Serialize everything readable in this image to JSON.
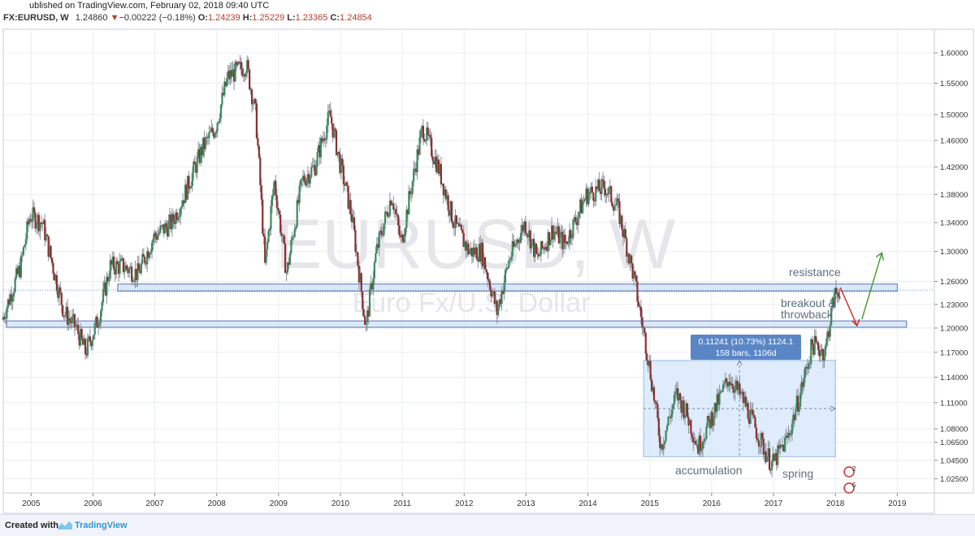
{
  "header": {
    "published": "ublished on TradingView.com, February 02, 2018 09:40 UTC",
    "symbol": "FX:EURUSD, W",
    "last": "1.24860",
    "change": "−0.00222 (−0.18%)",
    "open_label": "O:",
    "open": "1.24239",
    "high_label": "H:",
    "high": "1.25229",
    "low_label": "L:",
    "low": "1.23365",
    "close_label": "C:",
    "close": "1.24854",
    "down_arrow": "▼"
  },
  "watermark": {
    "line1": "EURUSD, W",
    "line2": "Euro Fx/U.S. Dollar"
  },
  "footer": {
    "created": "Created with",
    "brand": "TradingView"
  },
  "colors": {
    "up": "#3c8a5e",
    "down": "#8b2e2e",
    "zone_fill": "#cfe0f6",
    "zone_stroke": "#5a78b8",
    "measure_fill": "#dbeafb",
    "arrow_up": "#3d9a2e",
    "arrow_down": "#d42424",
    "grid": "#e9edf3"
  },
  "chart_data": {
    "type": "candlestick",
    "symbol": "FX:EURUSD",
    "interval": "W",
    "x_ticks": [
      "2005",
      "2006",
      "2007",
      "2008",
      "2009",
      "2010",
      "2011",
      "2012",
      "2013",
      "2014",
      "2015",
      "2016",
      "2017",
      "2018",
      "2019"
    ],
    "y_ticks": [
      "1.60000",
      "1.55000",
      "1.50000",
      "1.46000",
      "1.42000",
      "1.38000",
      "1.34000",
      "1.30000",
      "1.26000",
      "1.23000",
      "1.20000",
      "1.17000",
      "1.14000",
      "1.11000",
      "1.08000",
      "1.06500",
      "1.04500",
      "1.02500"
    ],
    "y_scale": "log",
    "ylim": [
      1.01,
      1.64
    ],
    "xlim": [
      2004.55,
      2019.6
    ],
    "grid": true,
    "price_path": [
      [
        2004.55,
        1.21
      ],
      [
        2004.85,
        1.28
      ],
      [
        2005.0,
        1.35
      ],
      [
        2005.2,
        1.34
      ],
      [
        2005.4,
        1.27
      ],
      [
        2005.55,
        1.22
      ],
      [
        2005.75,
        1.2
      ],
      [
        2005.9,
        1.17
      ],
      [
        2006.1,
        1.21
      ],
      [
        2006.3,
        1.28
      ],
      [
        2006.5,
        1.28
      ],
      [
        2006.75,
        1.27
      ],
      [
        2007.0,
        1.32
      ],
      [
        2007.3,
        1.34
      ],
      [
        2007.5,
        1.38
      ],
      [
        2007.8,
        1.45
      ],
      [
        2008.0,
        1.48
      ],
      [
        2008.2,
        1.56
      ],
      [
        2008.5,
        1.58
      ],
      [
        2008.65,
        1.5
      ],
      [
        2008.8,
        1.28
      ],
      [
        2008.95,
        1.4
      ],
      [
        2009.15,
        1.27
      ],
      [
        2009.4,
        1.4
      ],
      [
        2009.6,
        1.42
      ],
      [
        2009.85,
        1.5
      ],
      [
        2010.0,
        1.43
      ],
      [
        2010.2,
        1.35
      ],
      [
        2010.43,
        1.2
      ],
      [
        2010.6,
        1.3
      ],
      [
        2010.85,
        1.38
      ],
      [
        2011.0,
        1.31
      ],
      [
        2011.35,
        1.48
      ],
      [
        2011.6,
        1.42
      ],
      [
        2011.85,
        1.34
      ],
      [
        2012.1,
        1.3
      ],
      [
        2012.3,
        1.3
      ],
      [
        2012.55,
        1.22
      ],
      [
        2012.75,
        1.29
      ],
      [
        2013.0,
        1.34
      ],
      [
        2013.2,
        1.29
      ],
      [
        2013.45,
        1.33
      ],
      [
        2013.65,
        1.31
      ],
      [
        2014.0,
        1.38
      ],
      [
        2014.3,
        1.39
      ],
      [
        2014.5,
        1.36
      ],
      [
        2014.75,
        1.27
      ],
      [
        2015.0,
        1.16
      ],
      [
        2015.2,
        1.06
      ],
      [
        2015.45,
        1.12
      ],
      [
        2015.6,
        1.1
      ],
      [
        2015.8,
        1.06
      ],
      [
        2016.0,
        1.09
      ],
      [
        2016.3,
        1.14
      ],
      [
        2016.55,
        1.11
      ],
      [
        2016.85,
        1.06
      ],
      [
        2017.0,
        1.04
      ],
      [
        2017.25,
        1.07
      ],
      [
        2017.45,
        1.12
      ],
      [
        2017.65,
        1.18
      ],
      [
        2017.85,
        1.17
      ],
      [
        2018.0,
        1.24
      ],
      [
        2018.08,
        1.25
      ]
    ],
    "zones": [
      {
        "label": "resistance",
        "y_low": 1.2472,
        "y_high": 1.2565,
        "x_start": 2006.4,
        "x_end": 2019.0
      },
      {
        "label": "",
        "y_low": 1.201,
        "y_high": 1.209,
        "x_start": 2004.6,
        "x_end": 2019.15
      }
    ],
    "measure_box": {
      "x_start": 2014.9,
      "x_end": 2018.0,
      "y_low": 1.049,
      "y_high": 1.16,
      "readout_line1": "0.11241 (10.73%) 1124.1",
      "readout_line2": "158 bars, 1106d"
    },
    "annotations": [
      "resistance",
      "breakout & throwback",
      "accumulation",
      "spring"
    ],
    "projection": [
      [
        2018.08,
        1.252
      ],
      [
        2018.35,
        1.203
      ],
      [
        2018.75,
        1.298
      ]
    ],
    "current_price": 1.2486
  }
}
